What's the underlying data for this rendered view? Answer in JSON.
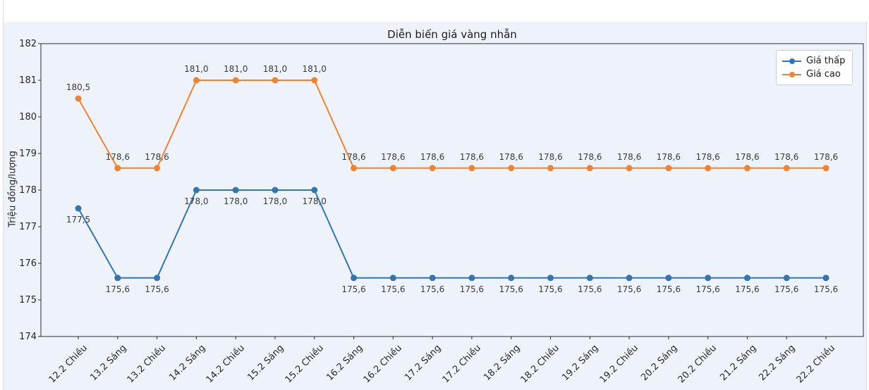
{
  "chart_data": {
    "type": "line",
    "title": "Diễn biến giá vàng nhẫn",
    "ylabel": "Triệu đồng/lượng",
    "xlabel": "",
    "categories": [
      "12.2 Chiều",
      "13.2 Sáng",
      "13.2 Chiều",
      "14.2 Sáng",
      "14.2 Chiều",
      "15.2 Sáng",
      "15.2 Chiều",
      "16.2 Sáng",
      "16.2 Chiều",
      "17.2 Sáng",
      "17.2 Chiều",
      "18.2 Sáng",
      "18.2 Chiều",
      "19.2 Sáng",
      "19.2 Chiều",
      "20.2 Sáng",
      "20.2 Chiều",
      "21.2 Sáng",
      "22.2 Sáng",
      "22.2 Chiều"
    ],
    "series": [
      {
        "name": "Giá thấp",
        "color": "#3375b0",
        "marker": "circle",
        "label_position": "below",
        "values": [
          177.5,
          175.6,
          175.6,
          178.0,
          178.0,
          178.0,
          178.0,
          175.6,
          175.6,
          175.6,
          175.6,
          175.6,
          175.6,
          175.6,
          175.6,
          175.6,
          175.6,
          175.6,
          175.6,
          175.6
        ],
        "value_labels": [
          "177,5",
          "175,6",
          "175,6",
          "178,0",
          "178,0",
          "178,0",
          "178,0",
          "175,6",
          "175,6",
          "175,6",
          "175,6",
          "175,6",
          "175,6",
          "175,6",
          "175,6",
          "175,6",
          "175,6",
          "175,6",
          "175,6",
          "175,6"
        ]
      },
      {
        "name": "Giá cao",
        "color": "#ee8433",
        "marker": "circle",
        "label_position": "above",
        "values": [
          180.5,
          178.6,
          178.6,
          181.0,
          181.0,
          181.0,
          181.0,
          178.6,
          178.6,
          178.6,
          178.6,
          178.6,
          178.6,
          178.6,
          178.6,
          178.6,
          178.6,
          178.6,
          178.6,
          178.6
        ],
        "value_labels": [
          "180,5",
          "178,6",
          "178,6",
          "181,0",
          "181,0",
          "181,0",
          "181,0",
          "178,6",
          "178,6",
          "178,6",
          "178,6",
          "178,6",
          "178,6",
          "178,6",
          "178,6",
          "178,6",
          "178,6",
          "178,6",
          "178,6",
          "178,6"
        ]
      }
    ],
    "y_ticks": [
      174,
      175,
      176,
      177,
      178,
      179,
      180,
      181,
      182
    ],
    "ylim": [
      174,
      182
    ],
    "grid": false,
    "legend_position": "top-right"
  },
  "theme": {
    "figure_background": "#eef3fb",
    "plot_border_color": "#2b2b2b",
    "tick_label_color": "#262626",
    "point_label_color": "#3a3a3a"
  }
}
